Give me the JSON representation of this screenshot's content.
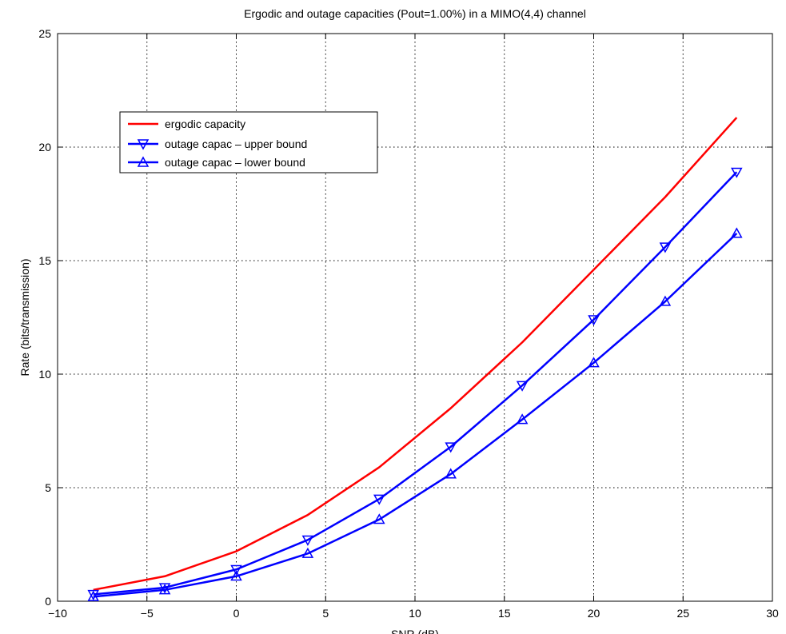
{
  "chart_data": {
    "type": "line",
    "title": "Ergodic and outage capacities (Pout=1.00%) in a MIMO(4,4) channel",
    "xlabel": "SNR (dB)",
    "ylabel": "Rate (bits/transmission)",
    "xlim": [
      -10,
      30
    ],
    "ylim": [
      0,
      25
    ],
    "xticks": [
      -10,
      -5,
      0,
      5,
      10,
      15,
      20,
      25,
      30
    ],
    "yticks": [
      0,
      5,
      10,
      15,
      20,
      25
    ],
    "grid": true,
    "legend_position": "upper-left",
    "series": [
      {
        "name": "ergodic capacity",
        "color": "#ff0000",
        "marker": "none",
        "x": [
          -8,
          -4,
          0,
          4,
          8,
          12,
          16,
          20,
          24,
          28
        ],
        "y": [
          0.5,
          1.1,
          2.2,
          3.8,
          5.9,
          8.5,
          11.4,
          14.6,
          17.8,
          21.3
        ]
      },
      {
        "name": "outage capac – upper bound",
        "color": "#0000ff",
        "marker": "triangle-down",
        "x": [
          -8,
          -4,
          0,
          4,
          8,
          12,
          16,
          20,
          24,
          28
        ],
        "y": [
          0.3,
          0.6,
          1.4,
          2.7,
          4.5,
          6.8,
          9.5,
          12.4,
          15.6,
          18.9
        ]
      },
      {
        "name": "outage capac – lower bound",
        "color": "#0000ff",
        "marker": "triangle-up",
        "x": [
          -8,
          -4,
          0,
          4,
          8,
          12,
          16,
          20,
          24,
          28
        ],
        "y": [
          0.2,
          0.5,
          1.1,
          2.1,
          3.6,
          5.6,
          8.0,
          10.5,
          13.2,
          16.2
        ]
      }
    ]
  }
}
